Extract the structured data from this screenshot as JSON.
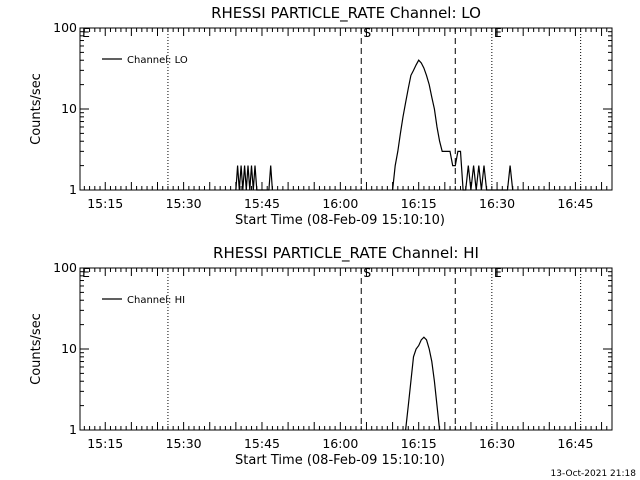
{
  "footer_timestamp": "13-Oct-2021 21:18",
  "chart_data": [
    {
      "type": "line",
      "title": "RHESSI PARTICLE_RATE Channel: LO",
      "xlabel": "Start Time (08-Feb-09 15:10:10)",
      "ylabel": "Counts/sec",
      "y_scale": "log",
      "ylim": [
        1,
        100
      ],
      "y_tick_labels": [
        "1",
        "10",
        "100"
      ],
      "xlim": [
        "15:10:10",
        "16:52:00"
      ],
      "x_tick_labels": [
        "15:15",
        "15:30",
        "15:45",
        "16:00",
        "16:15",
        "16:30",
        "16:45"
      ],
      "legend": "top-left",
      "series": [
        {
          "name": "Channel: LO",
          "x": [
            "15:40:00",
            "15:40:20",
            "15:40:40",
            "15:41:00",
            "15:41:20",
            "15:41:40",
            "15:42:00",
            "15:42:20",
            "15:42:40",
            "15:43:00",
            "15:43:20",
            "15:43:40",
            "15:44:00",
            "15:44:20",
            "15:46:20",
            "15:46:40",
            "15:47:00",
            "16:10:00",
            "16:10:30",
            "16:11:00",
            "16:11:30",
            "16:12:00",
            "16:12:30",
            "16:13:00",
            "16:13:30",
            "16:14:00",
            "16:14:30",
            "16:15:00",
            "16:15:30",
            "16:16:00",
            "16:16:30",
            "16:17:00",
            "16:17:30",
            "16:18:00",
            "16:18:30",
            "16:19:00",
            "16:19:30",
            "16:20:00",
            "16:20:30",
            "16:21:00",
            "16:21:30",
            "16:22:00",
            "16:22:30",
            "16:23:00",
            "16:23:30",
            "16:24:00",
            "16:24:30",
            "16:25:00",
            "16:25:30",
            "16:26:00",
            "16:26:30",
            "16:27:00",
            "16:27:30",
            "16:28:00",
            "16:28:30",
            "16:29:00",
            "16:29:30",
            "16:30:00",
            "16:30:30",
            "16:32:00",
            "16:32:30",
            "16:33:00"
          ],
          "y": [
            1,
            2,
            1,
            2,
            1,
            2,
            1,
            2,
            1,
            2,
            1,
            2,
            1,
            1,
            1,
            2,
            1,
            1,
            2,
            3,
            5,
            8,
            12,
            18,
            26,
            30,
            35,
            40,
            37,
            32,
            26,
            20,
            14,
            10,
            6,
            4,
            3,
            3,
            3,
            3,
            2,
            2,
            3,
            3,
            1,
            1,
            2,
            1,
            2,
            1,
            2,
            1,
            2,
            1,
            1,
            1,
            1,
            1,
            1,
            1,
            2,
            1
          ]
        }
      ],
      "markers": [
        {
          "label": "E",
          "time": "15:10:10",
          "style": "dotted"
        },
        {
          "time": "15:27:00",
          "style": "dotted"
        },
        {
          "label": "S",
          "time": "16:04:00",
          "style": "dashed"
        },
        {
          "time": "16:22:00",
          "style": "dashed"
        },
        {
          "label": "E",
          "time": "16:29:00",
          "style": "dotted"
        },
        {
          "time": "16:46:00",
          "style": "dotted"
        }
      ]
    },
    {
      "type": "line",
      "title": "RHESSI PARTICLE_RATE Channel: HI",
      "xlabel": "Start Time (08-Feb-09 15:10:10)",
      "ylabel": "Counts/sec",
      "y_scale": "log",
      "ylim": [
        1,
        100
      ],
      "y_tick_labels": [
        "1",
        "10",
        "100"
      ],
      "xlim": [
        "15:10:10",
        "16:52:00"
      ],
      "x_tick_labels": [
        "15:15",
        "15:30",
        "15:45",
        "16:00",
        "16:15",
        "16:30",
        "16:45"
      ],
      "legend": "top-left",
      "series": [
        {
          "name": "Channel: HI",
          "x": [
            "16:12:30",
            "16:13:00",
            "16:13:30",
            "16:14:00",
            "16:14:30",
            "16:15:00",
            "16:15:30",
            "16:16:00",
            "16:16:30",
            "16:17:00",
            "16:17:30",
            "16:18:00",
            "16:18:30",
            "16:19:00"
          ],
          "y": [
            1,
            2,
            4,
            8,
            10,
            11,
            13,
            14,
            13,
            10,
            7,
            4,
            2,
            1
          ]
        }
      ],
      "markers": [
        {
          "label": "E",
          "time": "15:10:10",
          "style": "dotted"
        },
        {
          "time": "15:27:00",
          "style": "dotted"
        },
        {
          "label": "S",
          "time": "16:04:00",
          "style": "dashed"
        },
        {
          "time": "16:22:00",
          "style": "dashed"
        },
        {
          "label": "E",
          "time": "16:29:00",
          "style": "dotted"
        },
        {
          "time": "16:46:00",
          "style": "dotted"
        }
      ]
    }
  ]
}
